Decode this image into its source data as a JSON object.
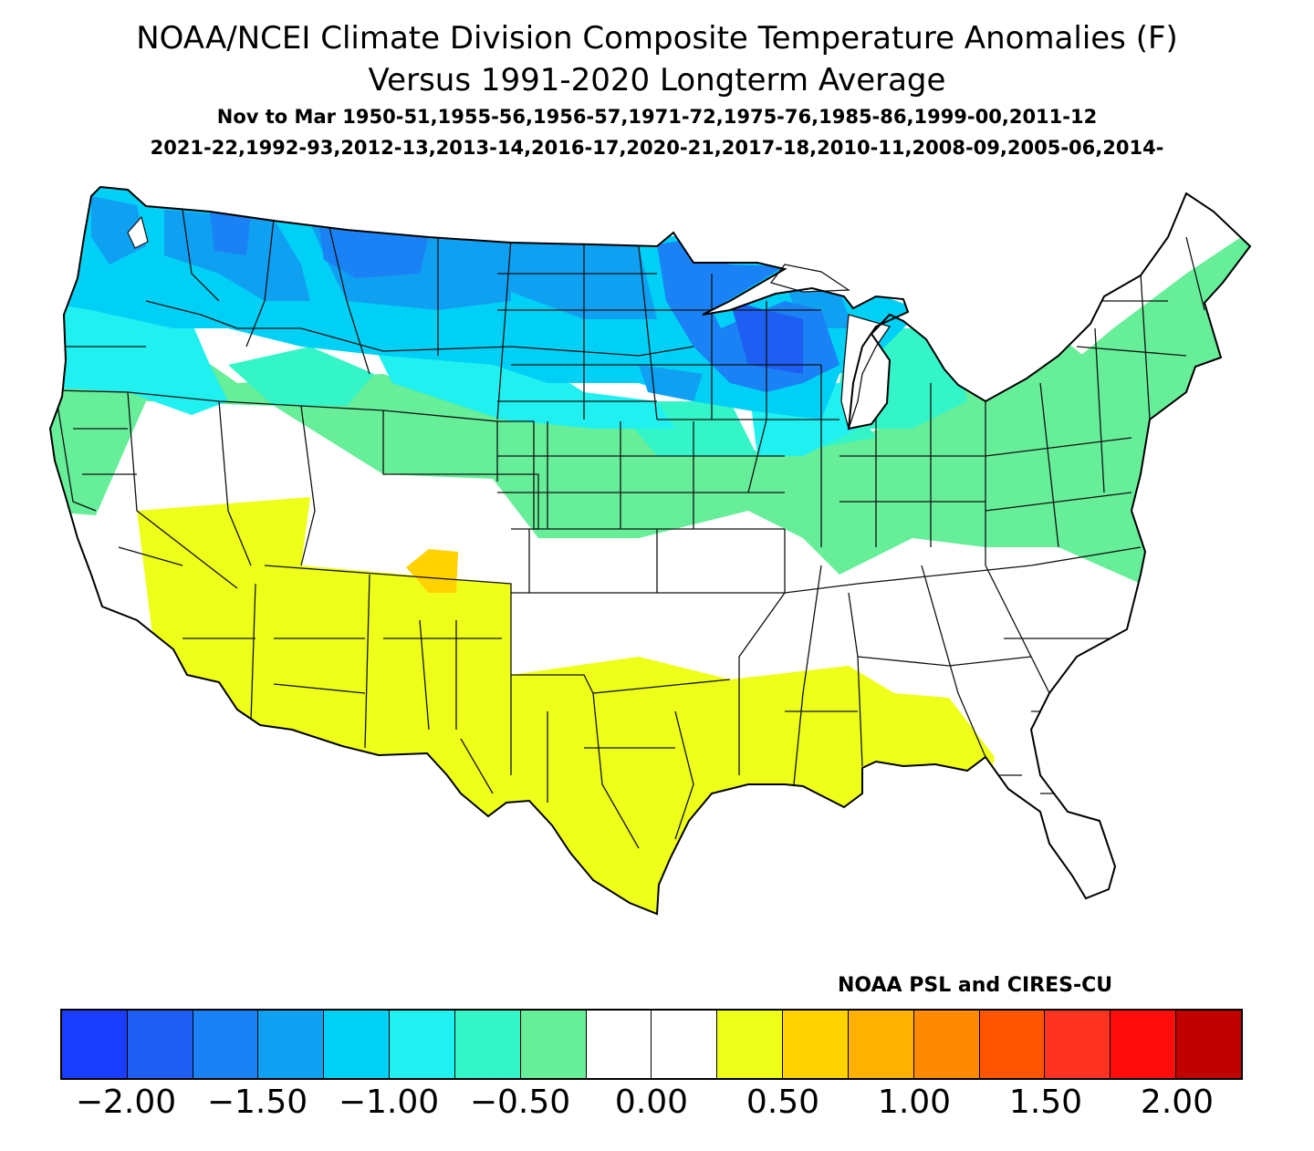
{
  "title_line1": "NOAA/NCEI Climate Division Composite Temperature Anomalies (F)",
  "title_line2": "Versus 1991-2020 Longterm Average",
  "subtitle_line1": "Nov to Mar  1950-51,1955-56,1956-57,1971-72,1975-76,1985-86,1999-00,2011-12",
  "subtitle_line2": "2021-22,1992-93,2012-13,2013-14,2016-17,2020-21,2017-18,2010-11,2008-09,2005-06,2014-",
  "credit": "NOAA PSL and CIRES-CU",
  "colors": {
    "m2.25": "#1a3dff",
    "m2.00": "#1e5ef2",
    "m1.75": "#1a82f5",
    "m1.50": "#10a0f2",
    "m1.25": "#00d0f5",
    "m1.00": "#20f0f0",
    "m0.75": "#33f5c8",
    "m0.50": "#66ee99",
    "zero": "#ffffff",
    "p0.25": "#eeff1a",
    "p0.50": "#ffd200",
    "p0.75": "#ffb000",
    "p1.00": "#ff8a00",
    "p1.25": "#ff5500",
    "p1.50": "#ff3322",
    "p1.75": "#ff0d0d",
    "p2.00": "#c00000"
  },
  "legend": {
    "bins": [
      {
        "range": "< -1.75",
        "color": "#1a3dff"
      },
      {
        "range": "-1.75 to -1.50",
        "color": "#1e5ef2"
      },
      {
        "range": "-1.50 to -1.25",
        "color": "#1a82f5"
      },
      {
        "range": "-1.25 to -1.00",
        "color": "#10a0f2"
      },
      {
        "range": "-1.00 to -0.75",
        "color": "#00d0f5"
      },
      {
        "range": "-0.75 to -0.50",
        "color": "#20f0f0"
      },
      {
        "range": "-0.50 to -0.25",
        "color": "#33f5c8"
      },
      {
        "range": "-0.25 to 0.00",
        "color": "#66ee99"
      },
      {
        "range": "0.00 to 0.25",
        "color": "#ffffff"
      },
      {
        "range": "0.25 to 0.50",
        "color": "#ffffff"
      },
      {
        "range": "0.50 to 0.75",
        "color": "#eeff1a"
      },
      {
        "range": "0.75 to 1.00",
        "color": "#ffd200"
      },
      {
        "range": "1.00 to 1.25",
        "color": "#ffb000"
      },
      {
        "range": "1.25 to 1.50",
        "color": "#ff8a00"
      },
      {
        "range": "1.50 to 1.75",
        "color": "#ff5500"
      },
      {
        "range": "1.75 to 2.00",
        "color": "#ff3322"
      },
      {
        "range": "2.00 to 2.25",
        "color": "#ff0d0d"
      },
      {
        "range": "> 2.25",
        "color": "#c00000"
      }
    ],
    "tick_labels": [
      "-2.00",
      "-1.50",
      "-1.00",
      "-0.50",
      "0.00",
      "0.50",
      "1.00",
      "1.50",
      "2.00"
    ]
  }
}
